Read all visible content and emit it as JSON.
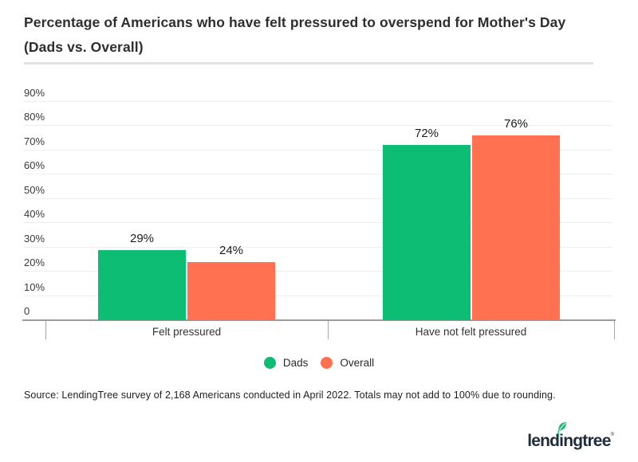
{
  "title": {
    "line1": "Percentage of Americans who have felt pressured to overspend for Mother's Day",
    "line2": "(Dads vs. Overall)"
  },
  "chart_data": {
    "type": "bar",
    "title": "Percentage of Americans who have felt pressured to overspend for Mother's Day (Dads vs. Overall)",
    "categories": [
      "Felt pressured",
      "Have not felt pressured"
    ],
    "series": [
      {
        "name": "Dads",
        "color": "#0dbd73",
        "values": [
          29,
          72
        ]
      },
      {
        "name": "Overall",
        "color": "#ff7151",
        "values": [
          24,
          76
        ]
      }
    ],
    "data_labels": [
      [
        "29%",
        "72%"
      ],
      [
        "24%",
        "76%"
      ]
    ],
    "y_ticks": [
      "0",
      "10%",
      "20%",
      "30%",
      "40%",
      "50%",
      "60%",
      "70%",
      "80%",
      "90%"
    ],
    "ylim": [
      0,
      95
    ],
    "grid": true,
    "legend_position": "bottom"
  },
  "source": "Source: LendingTree survey of 2,168 Americans conducted in April 2022. Totals may not add to 100% due to rounding.",
  "logo": {
    "wordmark": "lendingtree",
    "trademark": "®",
    "leaf_color": "#21b573",
    "text_color": "#1e2c3c"
  },
  "colors": {
    "dads_green": "#0dbd73",
    "overall_coral": "#ff7151",
    "axis_gray": "#9b9b9b",
    "gridline_gray": "#ededed",
    "divider_gray": "#e2e2e2"
  }
}
